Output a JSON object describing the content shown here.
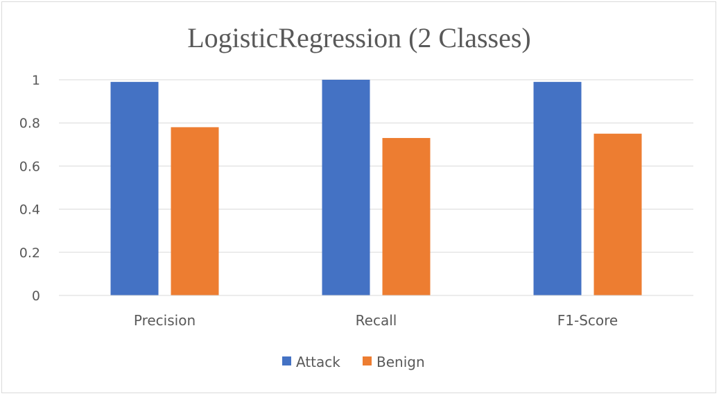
{
  "chart_data": {
    "type": "bar",
    "title": "LogisticRegression (2 Classes)",
    "categories": [
      "Precision",
      "Recall",
      "F1-Score"
    ],
    "series": [
      {
        "name": "Attack",
        "color": "#4472C4",
        "values": [
          0.99,
          1.0,
          0.99
        ]
      },
      {
        "name": "Benign",
        "color": "#ED7D31",
        "values": [
          0.78,
          0.73,
          0.75
        ]
      }
    ],
    "ylim": [
      0,
      1
    ],
    "yticks": [
      "0",
      "0.2",
      "0.4",
      "0.6",
      "0.8",
      "1"
    ],
    "ytick_values": [
      0,
      0.2,
      0.4,
      0.6,
      0.8,
      1
    ],
    "grid": true,
    "legend_position": "bottom"
  }
}
